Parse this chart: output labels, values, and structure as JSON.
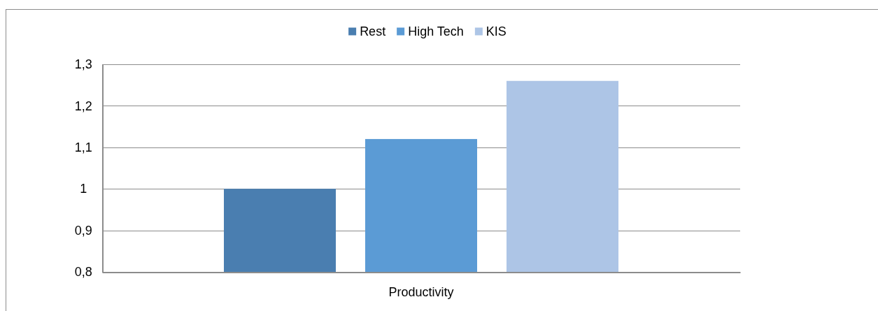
{
  "chart_data": {
    "type": "bar",
    "categories": [
      "Productivity"
    ],
    "series": [
      {
        "name": "Rest",
        "color": "#4a7eb0",
        "values": [
          1.0
        ]
      },
      {
        "name": "High Tech",
        "color": "#5b9bd5",
        "values": [
          1.12
        ]
      },
      {
        "name": "KIS",
        "color": "#adc5e6",
        "values": [
          1.26
        ]
      }
    ],
    "ylim": [
      0.8,
      1.3
    ],
    "yticks": [
      {
        "value": 0.8,
        "label": "0,8"
      },
      {
        "value": 0.9,
        "label": "0,9"
      },
      1,
      {
        "value": 1.1,
        "label": "1,1"
      },
      {
        "value": 1.2,
        "label": "1,2"
      },
      {
        "value": 1.3,
        "label": "1,3"
      }
    ],
    "grid": "y",
    "legend": "top"
  }
}
